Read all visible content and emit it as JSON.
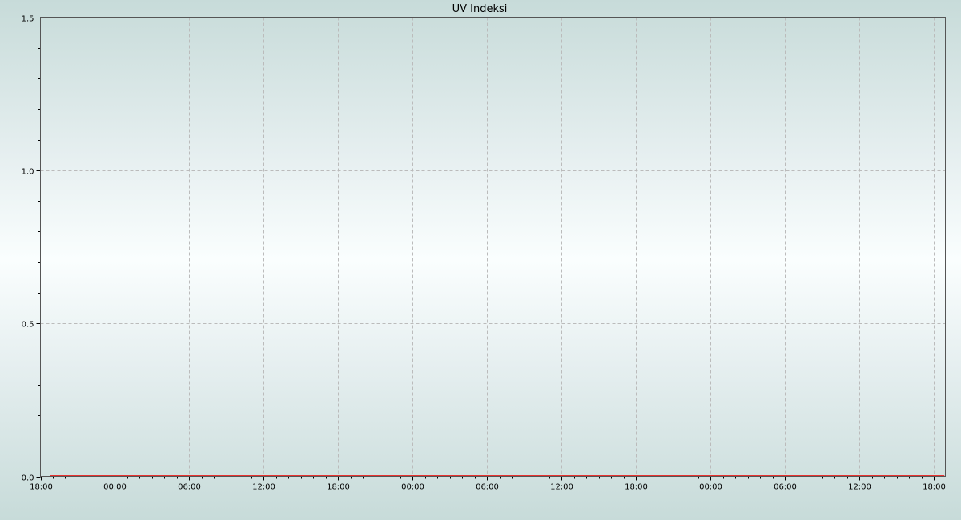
{
  "chart_data": {
    "type": "line",
    "title": "UV Indeksi",
    "xlabel": "",
    "ylabel": "",
    "x_tick_labels": [
      "18:00",
      "00:00",
      "06:00",
      "12:00",
      "18:00",
      "00:00",
      "06:00",
      "12:00",
      "18:00",
      "00:00",
      "06:00",
      "12:00",
      "18:00"
    ],
    "x_tick_interval_hours": 6,
    "x_minor_tick_interval_hours": 1,
    "x_range_end": "18:55",
    "ylim": [
      0,
      1.5
    ],
    "y_ticks": [
      0.0,
      0.5,
      1.0,
      1.5
    ],
    "y_minor_tick_interval": 0.1,
    "grid": true,
    "series": [
      {
        "color": "#e8312f",
        "x_start": "18:47",
        "x_end": "18:50",
        "value": 0
      }
    ]
  }
}
